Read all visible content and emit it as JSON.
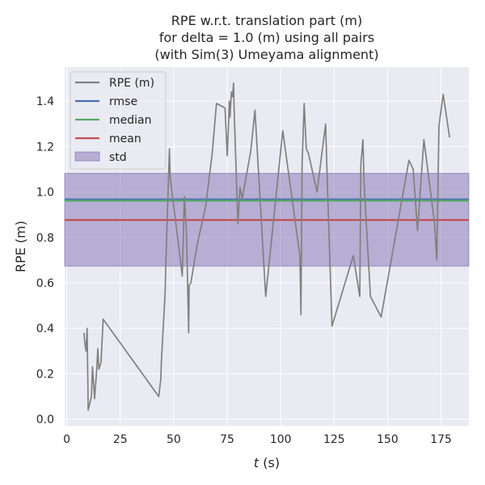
{
  "chart_data": {
    "type": "line",
    "title_lines": [
      "RPE w.r.t. translation part (m)",
      "for delta = 1.0 (m) using all pairs",
      "(with Sim(3) Umeyama alignment)"
    ],
    "xlabel_italic": "t",
    "xlabel_rest": " (s)",
    "ylabel": "RPE (m)",
    "xlim": [
      -1,
      188
    ],
    "ylim": [
      -0.03,
      1.55
    ],
    "xticks": [
      0,
      25,
      50,
      75,
      100,
      125,
      150,
      175
    ],
    "yticks": [
      0.0,
      0.2,
      0.4,
      0.6,
      0.8,
      1.0,
      1.2,
      1.4
    ],
    "ytick_labels": [
      "0.0",
      "0.2",
      "0.4",
      "0.6",
      "0.8",
      "1.0",
      "1.2",
      "1.4"
    ],
    "grid": true,
    "legend_position": "top-left",
    "series": [
      {
        "name": "RPE (m)",
        "color": "#808080",
        "x": [
          8,
          8.5,
          9,
          9.5,
          10,
          11.5,
          12,
          13,
          14,
          14.5,
          15,
          16,
          17,
          43,
          44,
          44.2,
          46,
          46.3,
          48,
          48.3,
          54,
          55,
          56,
          57,
          57.2,
          58,
          61,
          65,
          68,
          70,
          74,
          75,
          75.5,
          76,
          76.3,
          77,
          77.5,
          78,
          78.2,
          80,
          81,
          82,
          86,
          88,
          93,
          101,
          109,
          109.5,
          110,
          111,
          112,
          113,
          117,
          121,
          122,
          124,
          134,
          136,
          137,
          137.5,
          138.5,
          139,
          142,
          147,
          160,
          162,
          164,
          167,
          172,
          173,
          174,
          175,
          176,
          179
        ],
        "y": [
          0.38,
          0.33,
          0.3,
          0.4,
          0.04,
          0.1,
          0.23,
          0.09,
          0.22,
          0.31,
          0.22,
          0.25,
          0.44,
          0.1,
          0.18,
          0.25,
          0.56,
          0.68,
          1.19,
          1.07,
          0.63,
          0.98,
          0.81,
          0.38,
          0.59,
          0.6,
          0.77,
          0.94,
          1.17,
          1.39,
          1.37,
          1.16,
          1.27,
          1.4,
          1.33,
          1.44,
          1.42,
          1.48,
          1.38,
          0.86,
          1.02,
          0.97,
          1.18,
          1.36,
          0.54,
          1.27,
          0.72,
          0.46,
          1.12,
          1.39,
          1.19,
          1.17,
          1.0,
          1.3,
          0.99,
          0.41,
          0.72,
          0.6,
          0.54,
          1.12,
          1.23,
          1.04,
          0.54,
          0.45,
          1.14,
          1.1,
          0.83,
          1.23,
          0.86,
          0.7,
          1.29,
          1.36,
          1.43,
          1.24
        ]
      },
      {
        "name": "rmse",
        "color": "#4c72b0",
        "value": 0.968
      },
      {
        "name": "median",
        "color": "#55a868",
        "value": 0.962
      },
      {
        "name": "mean",
        "color": "#c44e52",
        "value": 0.877
      },
      {
        "name": "std",
        "color": "#8172b3",
        "band": [
          0.674,
          1.082
        ]
      }
    ]
  }
}
